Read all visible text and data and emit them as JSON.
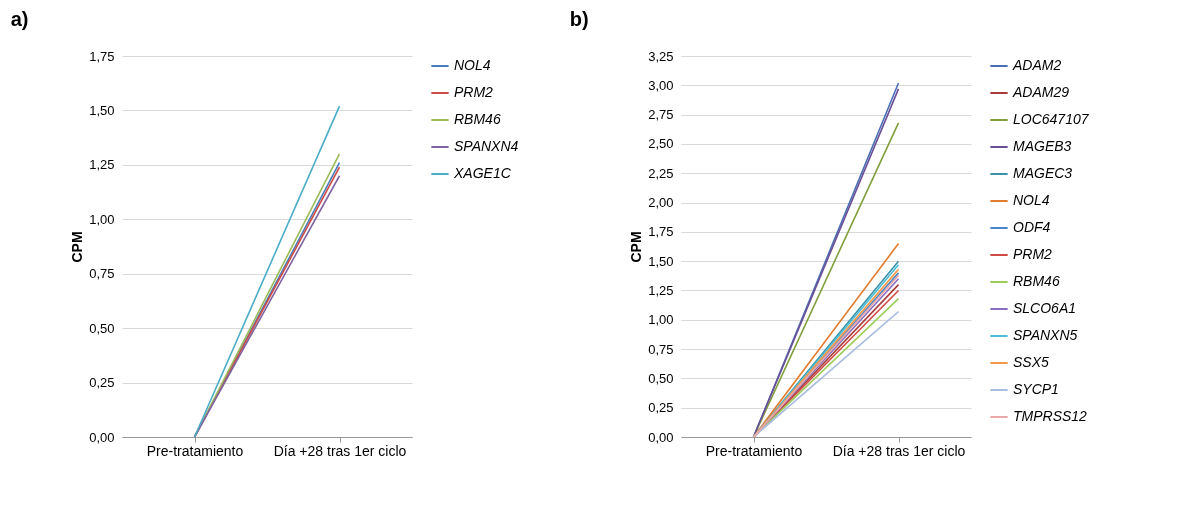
{
  "chart_data": [
    {
      "type": "line",
      "title": "a)",
      "ylabel": "CPM",
      "categories": [
        "Pre-tratamiento",
        "Día +28 tras 1er ciclo"
      ],
      "ylim": [
        0,
        1.75
      ],
      "yticks": [
        {
          "value": 0,
          "label": "0,00"
        },
        {
          "value": 0.25,
          "label": "0,25"
        },
        {
          "value": 0.5,
          "label": "0,50"
        },
        {
          "value": 0.75,
          "label": "0,75"
        },
        {
          "value": 1,
          "label": "1,00"
        },
        {
          "value": 1.25,
          "label": "1,25"
        },
        {
          "value": 1.5,
          "label": "1,50"
        },
        {
          "value": 1.75,
          "label": "1,75"
        }
      ],
      "grid": "y",
      "legend": "right",
      "marker": "none",
      "series": [
        {
          "name": "NOL4",
          "color": "#4a7ebb",
          "values": [
            0,
            1.26
          ]
        },
        {
          "name": "PRM2",
          "color": "#d04a45",
          "values": [
            0,
            1.24
          ]
        },
        {
          "name": "RBM46",
          "color": "#9bbb59",
          "values": [
            0,
            1.3
          ]
        },
        {
          "name": "SPANXN4",
          "color": "#8064a2",
          "values": [
            0,
            1.2
          ]
        },
        {
          "name": "XAGE1C",
          "color": "#4bacc6",
          "values": [
            0,
            1.52
          ]
        }
      ]
    },
    {
      "type": "line",
      "title": "b)",
      "ylabel": "CPM",
      "categories": [
        "Pre-tratamiento",
        "Día +28 tras 1er ciclo"
      ],
      "ylim": [
        0,
        3.25
      ],
      "yticks": [
        {
          "value": 0,
          "label": "0,00"
        },
        {
          "value": 0.25,
          "label": "0,25"
        },
        {
          "value": 0.5,
          "label": "0,50"
        },
        {
          "value": 0.75,
          "label": "0,75"
        },
        {
          "value": 1,
          "label": "1,00"
        },
        {
          "value": 1.25,
          "label": "1,25"
        },
        {
          "value": 1.5,
          "label": "1,50"
        },
        {
          "value": 1.75,
          "label": "1,75"
        },
        {
          "value": 2,
          "label": "2,00"
        },
        {
          "value": 2.25,
          "label": "2,25"
        },
        {
          "value": 2.5,
          "label": "2,50"
        },
        {
          "value": 2.75,
          "label": "2,75"
        },
        {
          "value": 3,
          "label": "3,00"
        },
        {
          "value": 3.25,
          "label": "3,25"
        }
      ],
      "grid": "y",
      "legend": "right",
      "marker": "none",
      "series": [
        {
          "name": "ADAM2",
          "color": "#4a6fb5",
          "values": [
            0,
            3.02
          ]
        },
        {
          "name": "ADAM29",
          "color": "#a83c3a",
          "values": [
            0,
            1.3
          ]
        },
        {
          "name": "LOC647107",
          "color": "#7f9e3c",
          "values": [
            0,
            2.68
          ]
        },
        {
          "name": "MAGEB3",
          "color": "#6b4f96",
          "values": [
            0,
            2.97
          ]
        },
        {
          "name": "MAGEC3",
          "color": "#3a93a8",
          "values": [
            0,
            1.5
          ]
        },
        {
          "name": "NOL4",
          "color": "#e07b2f",
          "values": [
            0,
            1.65
          ]
        },
        {
          "name": "ODF4",
          "color": "#4a86c8",
          "values": [
            0,
            1.4
          ]
        },
        {
          "name": "PRM2",
          "color": "#d04a45",
          "values": [
            0,
            1.25
          ]
        },
        {
          "name": "RBM46",
          "color": "#9ccc5a",
          "values": [
            0,
            1.18
          ]
        },
        {
          "name": "SLCO6A1",
          "color": "#8a6fc0",
          "values": [
            0,
            1.35
          ]
        },
        {
          "name": "SPANXN5",
          "color": "#4bbcd6",
          "values": [
            0,
            1.47
          ]
        },
        {
          "name": "SSX5",
          "color": "#f29a4a",
          "values": [
            0,
            1.43
          ]
        },
        {
          "name": "SYCP1",
          "color": "#a9bde0",
          "values": [
            0,
            1.07
          ]
        },
        {
          "name": "TMPRSS12",
          "color": "#eaa8a8",
          "values": [
            0,
            1.38
          ]
        }
      ]
    }
  ]
}
